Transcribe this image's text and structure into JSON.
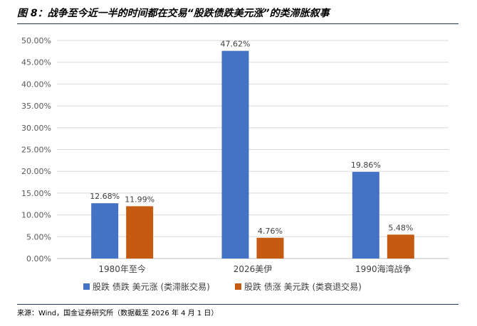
{
  "figure": {
    "title": "图 8：战争至今近一半的时间都在交易“股跌债跌美元涨”的类滞胀叙事",
    "source": "来源：Wind，国金证券研究所（数据截至 2026 年 4 月 1 日）"
  },
  "colors": {
    "series1": "#4472c4",
    "series2": "#c55a11",
    "grid": "#d9d9d9",
    "rule": "#1f3864"
  },
  "chart_data": {
    "type": "bar",
    "categories": [
      "1980年至今",
      "2026美伊",
      "1990海湾战争"
    ],
    "series": [
      {
        "name": "股跌 债跌 美元涨 (类滞胀交易)",
        "values": [
          12.68,
          47.62,
          19.86
        ],
        "value_labels": [
          "12.68%",
          "47.62%",
          "19.86%"
        ]
      },
      {
        "name": "股跌 债涨 美元跌 (类衰退交易)",
        "values": [
          11.99,
          4.76,
          5.48
        ],
        "value_labels": [
          "11.99%",
          "4.76%",
          "5.48%"
        ]
      }
    ],
    "ylim": [
      0,
      50
    ],
    "yticks": [
      "0.00%",
      "5.00%",
      "10.00%",
      "15.00%",
      "20.00%",
      "25.00%",
      "30.00%",
      "35.00%",
      "40.00%",
      "45.00%",
      "50.00%"
    ],
    "grid": true,
    "legend": "bottom"
  }
}
